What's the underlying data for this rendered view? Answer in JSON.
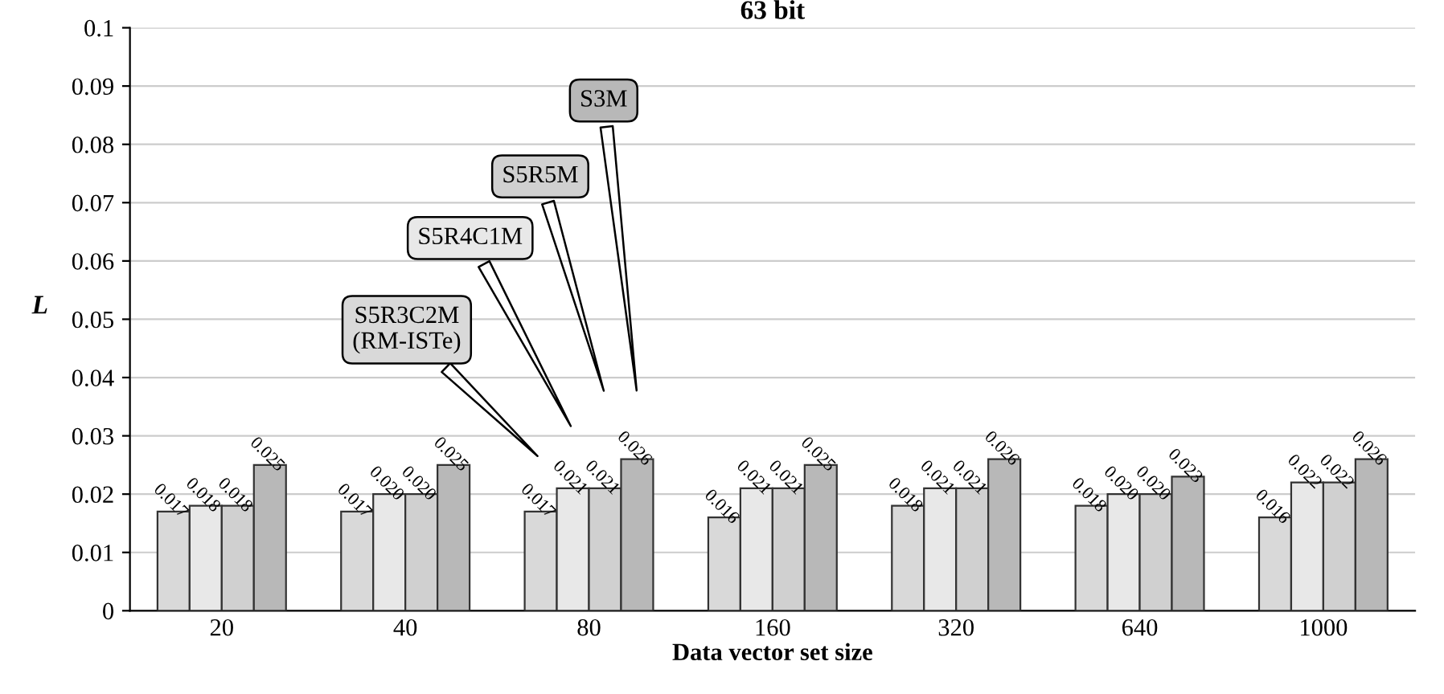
{
  "chart_data": {
    "type": "bar",
    "title": "63 bit",
    "xlabel": "Data vector set size",
    "ylabel": "L",
    "categories": [
      "20",
      "40",
      "80",
      "160",
      "320",
      "640",
      "1000"
    ],
    "series": [
      {
        "name": "S5R3C2M\n(RM-ISTe)",
        "color": "#d9d9d9",
        "values": [
          0.017,
          0.017,
          0.017,
          0.016,
          0.018,
          0.018,
          0.016
        ],
        "value_labels": [
          "0.017",
          "0.017",
          "0.017",
          "0.016",
          "0.018",
          "0.018",
          "0.016"
        ]
      },
      {
        "name": "S5R4C1M",
        "color": "#e8e8e8",
        "values": [
          0.018,
          0.02,
          0.021,
          0.021,
          0.021,
          0.02,
          0.022
        ],
        "value_labels": [
          "0.018",
          "0.020",
          "0.021",
          "0.021",
          "0.021",
          "0.020",
          "0.022"
        ]
      },
      {
        "name": "S5R5M",
        "color": "#d0d0d0",
        "values": [
          0.018,
          0.02,
          0.021,
          0.021,
          0.021,
          0.02,
          0.022
        ],
        "value_labels": [
          "0.018",
          "0.020",
          "0.021",
          "0.021",
          "0.021",
          "0.020",
          "0.022"
        ]
      },
      {
        "name": "S3M",
        "color": "#b8b8b8",
        "values": [
          0.025,
          0.025,
          0.026,
          0.025,
          0.026,
          0.023,
          0.026
        ],
        "value_labels": [
          "0.025",
          "0.025",
          "0.026",
          "0.025",
          "0.026",
          "0.023",
          "0.026"
        ]
      }
    ],
    "ylim": [
      0,
      0.1
    ],
    "yticks": [
      0,
      0.01,
      0.02,
      0.03,
      0.04,
      0.05,
      0.06,
      0.07,
      0.08,
      0.09,
      0.1
    ],
    "grid": "y",
    "legend": false
  }
}
